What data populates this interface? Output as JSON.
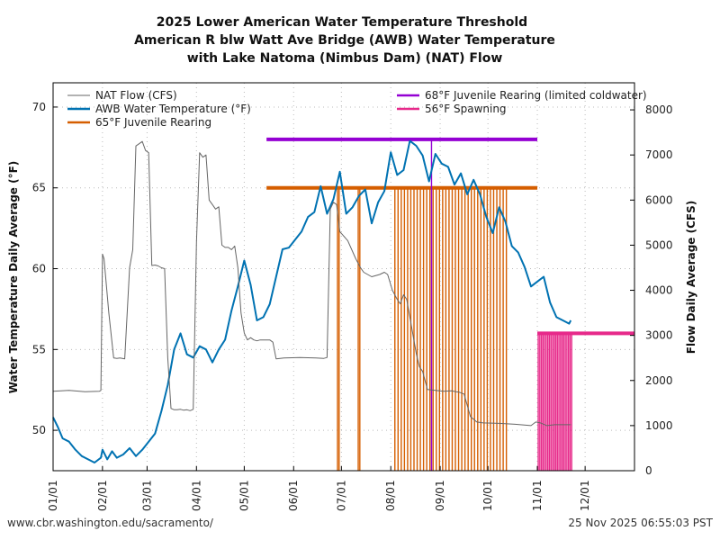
{
  "chart_data": {
    "type": "line",
    "title": [
      "2025 Lower American Water Temperature Threshold",
      "American R blw Watt Ave Bridge (AWB) Water Temperature",
      "with Lake Natoma (Nimbus Dam) (NAT) Flow"
    ],
    "xlabel": "",
    "ylabel_left": "Water Temperature Daily Average (°F)",
    "ylabel_right": "Flow Daily Average (CFS)",
    "x_ticks": [
      "01/01",
      "02/01",
      "03/01",
      "04/01",
      "05/01",
      "06/01",
      "07/01",
      "08/01",
      "09/01",
      "10/01",
      "11/01",
      "12/01"
    ],
    "x_range_days": [
      0,
      365
    ],
    "ylim_left": [
      47.5,
      71.5
    ],
    "yticks_left": [
      50,
      55,
      60,
      65,
      70
    ],
    "ylim_right": [
      0,
      8600
    ],
    "yticks_right": [
      0,
      1000,
      2000,
      3000,
      4000,
      5000,
      6000,
      7000,
      8000
    ],
    "grid": true,
    "legend": [
      {
        "label": "NAT Flow (CFS)",
        "color": "#666666",
        "position": "top-left"
      },
      {
        "label": "AWB Water Temperature (°F)",
        "color": "#0072b2",
        "position": "top-left"
      },
      {
        "label": "65°F Juvenile Rearing",
        "color": "#d55e00",
        "position": "top-left"
      },
      {
        "label": "68°F Juvenile Rearing (limited coldwater)",
        "color": "#9400d3",
        "position": "top-right"
      },
      {
        "label": "56°F Spawning",
        "color": "#e7298a",
        "position": "top-right"
      }
    ],
    "series": [
      {
        "name": "AWB Water Temperature (°F)",
        "axis": "left",
        "x_day": [
          0,
          3,
          6,
          10,
          14,
          18,
          22,
          26,
          30,
          31,
          34,
          37,
          40,
          44,
          48,
          52,
          56,
          60,
          64,
          68,
          72,
          76,
          80,
          84,
          88,
          92,
          96,
          100,
          104,
          108,
          112,
          116,
          120,
          124,
          128,
          132,
          136,
          140,
          144,
          148,
          152,
          156,
          160,
          164,
          168,
          172,
          176,
          180,
          184,
          188,
          192,
          196,
          200,
          204,
          208,
          212,
          216,
          220,
          224,
          228,
          232,
          236,
          240,
          244,
          248,
          252,
          256,
          260,
          264,
          268,
          272,
          276,
          280,
          284,
          288,
          292,
          296,
          300,
          304,
          308,
          312,
          316,
          320,
          324,
          325
        ],
        "values": [
          50.8,
          50.2,
          49.5,
          49.3,
          48.8,
          48.4,
          48.2,
          48.0,
          48.3,
          48.8,
          48.2,
          48.7,
          48.3,
          48.5,
          48.9,
          48.4,
          48.8,
          49.3,
          49.8,
          51.2,
          52.8,
          55.0,
          56.0,
          54.7,
          54.5,
          55.2,
          55.0,
          54.2,
          55.0,
          55.6,
          57.4,
          58.9,
          60.5,
          59.0,
          56.8,
          57.0,
          57.8,
          59.5,
          61.2,
          61.3,
          61.8,
          62.3,
          63.2,
          63.5,
          65.1,
          63.4,
          64.3,
          66.0,
          63.4,
          63.8,
          64.5,
          64.9,
          62.8,
          64.1,
          64.8,
          67.2,
          65.8,
          66.1,
          67.9,
          67.6,
          67.0,
          65.4,
          67.1,
          66.5,
          66.3,
          65.2,
          65.9,
          64.6,
          65.5,
          64.6,
          63.2,
          62.2,
          63.8,
          62.9,
          61.4,
          61.0,
          60.1,
          58.9,
          59.2,
          59.5,
          57.9,
          57.0,
          56.8,
          56.6,
          56.8
        ]
      },
      {
        "name": "NAT Flow (CFS)",
        "axis": "right",
        "x_day": [
          0,
          10,
          20,
          29,
          30,
          31,
          32,
          35,
          38,
          40,
          42,
          45,
          48,
          50,
          52,
          54,
          56,
          58,
          60,
          62,
          64,
          66,
          68,
          70,
          72,
          74,
          76,
          78,
          80,
          82,
          84,
          86,
          88,
          90,
          92,
          94,
          96,
          98,
          100,
          102,
          104,
          106,
          108,
          110,
          112,
          114,
          116,
          118,
          120,
          122,
          124,
          126,
          128,
          130,
          133,
          136,
          138,
          140,
          145,
          155,
          165,
          170,
          172,
          174,
          176,
          178,
          180,
          185,
          190,
          193,
          195,
          200,
          205,
          208,
          210,
          213,
          216,
          218,
          220,
          222,
          225,
          228,
          230,
          232,
          235,
          240,
          245,
          250,
          253,
          255,
          258,
          262,
          266,
          270,
          280,
          290,
          300,
          303,
          306,
          310,
          315,
          320,
          325
        ],
        "values": [
          1760,
          1780,
          1750,
          1760,
          1780,
          4800,
          4700,
          3500,
          2500,
          2490,
          2500,
          2480,
          4500,
          4900,
          7200,
          7250,
          7300,
          7100,
          7050,
          4550,
          4560,
          4540,
          4500,
          4480,
          2500,
          1380,
          1350,
          1350,
          1360,
          1340,
          1350,
          1330,
          1360,
          5060,
          7050,
          6950,
          7000,
          6000,
          5900,
          5800,
          5850,
          5000,
          4950,
          4950,
          4900,
          4980,
          4500,
          3500,
          3050,
          2900,
          2950,
          2900,
          2880,
          2900,
          2900,
          2900,
          2850,
          2480,
          2500,
          2510,
          2500,
          2490,
          2510,
          5800,
          5950,
          5900,
          5300,
          5100,
          4700,
          4500,
          4400,
          4300,
          4350,
          4400,
          4350,
          4000,
          3800,
          3700,
          3900,
          3800,
          3200,
          2600,
          2300,
          2200,
          1800,
          1780,
          1760,
          1770,
          1750,
          1740,
          1700,
          1200,
          1080,
          1060,
          1050,
          1030,
          1000,
          1080,
          1060,
          1000,
          1020,
          1020,
          1020
        ]
      },
      {
        "name": "65°F Juvenile Rearing",
        "axis": "left",
        "type": "threshold",
        "value": 65,
        "x_start_day": 134,
        "x_end_day": 304,
        "exceedance_days": [
          178,
          179,
          191,
          192,
          214,
          216,
          218,
          220,
          222,
          224,
          226,
          228,
          230,
          232,
          234,
          236,
          238,
          240,
          242,
          244,
          246,
          248,
          250,
          252,
          254,
          256,
          258,
          260,
          262,
          264,
          266,
          268,
          270,
          272,
          274,
          276,
          278,
          280,
          282,
          284
        ]
      },
      {
        "name": "68°F Juvenile Rearing (limited coldwater)",
        "axis": "left",
        "type": "threshold",
        "value": 68,
        "x_start_day": 134,
        "x_end_day": 304,
        "exceedance_days": [
          237
        ]
      },
      {
        "name": "56°F Spawning",
        "axis": "left",
        "type": "threshold",
        "value": 56,
        "x_start_day": 304,
        "x_end_day": 365,
        "exceedance_days": [
          304,
          305,
          306,
          307,
          308,
          309,
          310,
          311,
          312,
          313,
          314,
          315,
          316,
          317,
          318,
          319,
          320,
          321,
          322,
          323,
          324,
          325
        ]
      }
    ]
  },
  "footer": {
    "source_url": "www.cbr.washington.edu/sacramento/",
    "timestamp": "25 Nov 2025 06:55:03 PST"
  }
}
